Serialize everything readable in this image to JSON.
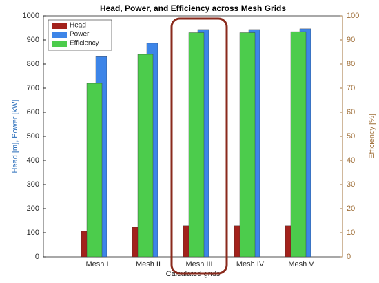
{
  "chart_data": {
    "type": "bar",
    "title": "Head, Power, and Efficiency across Mesh Grids",
    "x_label": "Calculated grids",
    "y_label": "Head [m], Power [kW]",
    "y2_label": "Efficiency [%]",
    "categories": [
      "Mesh I",
      "Mesh II",
      "Mesh III",
      "Mesh IV",
      "Mesh V"
    ],
    "series": [
      {
        "name": "Head",
        "color": "#a3221c",
        "values": [
          106,
          123,
          129,
          129,
          129
        ]
      },
      {
        "name": "Power",
        "color": "#3d85e8",
        "values": [
          831,
          886,
          943,
          943,
          946
        ]
      },
      {
        "name": "Efficiency",
        "color": "#4ccc4c",
        "axis": "y2",
        "values": [
          72,
          84,
          93,
          93,
          93.4
        ]
      }
    ],
    "ylim": [
      0,
      1000
    ],
    "yticks": [
      0,
      100,
      200,
      300,
      400,
      500,
      600,
      700,
      800,
      900,
      1000
    ],
    "y2lim": [
      0,
      100
    ],
    "y2ticks": [
      0,
      10,
      20,
      30,
      40,
      50,
      60,
      70,
      80,
      90,
      100
    ],
    "legend": "top-left",
    "grid": false
  }
}
